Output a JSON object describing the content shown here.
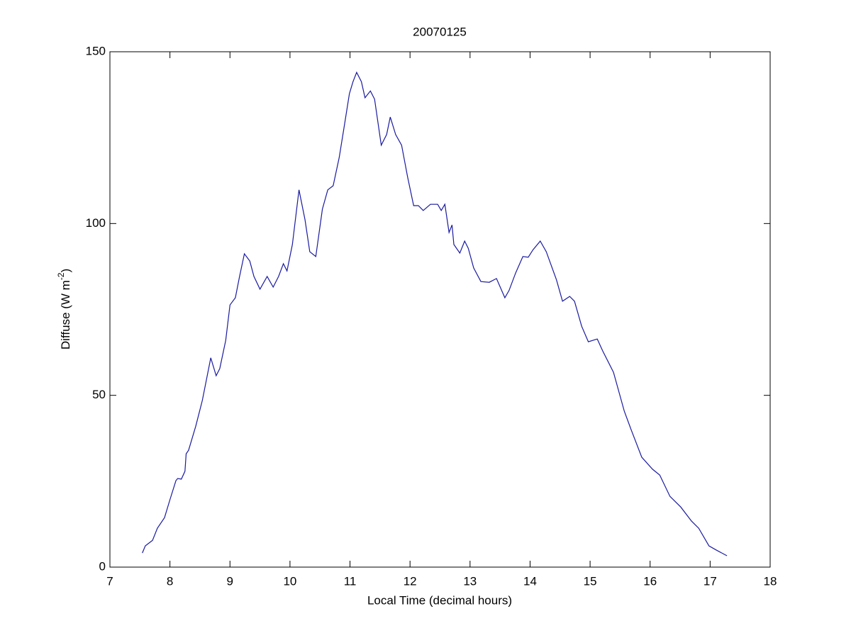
{
  "chart_data": {
    "type": "line",
    "title": "20070125",
    "xlabel": "Local Time (decimal hours)",
    "ylabel": [
      "Diffuse (W m",
      "-2",
      ")"
    ],
    "xlim": [
      7,
      18
    ],
    "xticks": [
      7,
      8,
      9,
      10,
      11,
      12,
      13,
      14,
      15,
      16,
      17,
      18
    ],
    "ylim": [
      0,
      150
    ],
    "yticks": [
      0,
      50,
      100,
      150
    ],
    "grid": false,
    "series": [
      {
        "name": "Diffuse",
        "color": "#1a1aa0",
        "x": [
          7.54,
          7.59,
          7.71,
          7.79,
          7.91,
          8.0,
          8.1,
          8.13,
          8.19,
          8.25,
          8.27,
          8.31,
          8.43,
          8.54,
          8.68,
          8.77,
          8.83,
          8.93,
          9.0,
          9.09,
          9.16,
          9.24,
          9.33,
          9.4,
          9.5,
          9.62,
          9.72,
          9.81,
          9.89,
          9.95,
          10.04,
          10.15,
          10.25,
          10.33,
          10.43,
          10.54,
          10.63,
          10.72,
          10.82,
          10.9,
          10.99,
          11.05,
          11.11,
          11.19,
          11.25,
          11.34,
          11.41,
          11.52,
          11.61,
          11.67,
          11.76,
          11.86,
          11.96,
          12.06,
          12.14,
          12.22,
          12.34,
          12.46,
          12.52,
          12.58,
          12.65,
          12.7,
          12.73,
          12.83,
          12.91,
          12.97,
          13.06,
          13.18,
          13.32,
          13.44,
          13.58,
          13.65,
          13.76,
          13.88,
          13.97,
          14.05,
          14.17,
          14.27,
          14.44,
          14.54,
          14.66,
          14.74,
          14.86,
          14.97,
          15.12,
          15.21,
          15.39,
          15.57,
          15.68,
          15.86,
          16.04,
          16.16,
          16.33,
          16.51,
          16.69,
          16.81,
          16.98,
          17.1,
          17.28
        ],
        "values": [
          4.1,
          6.2,
          7.8,
          11.3,
          14.4,
          19.6,
          25.2,
          25.8,
          25.6,
          27.9,
          33,
          34,
          41,
          48.5,
          60.9,
          55.7,
          57.8,
          66,
          76.3,
          78.4,
          84.6,
          91.2,
          89.1,
          84.6,
          80.9,
          84.6,
          81.5,
          84.6,
          88.3,
          86.2,
          93.9,
          109.8,
          101.1,
          91.8,
          90.4,
          104.2,
          109.8,
          111.0,
          119.2,
          127.9,
          137.8,
          141.3,
          144.0,
          141.3,
          136.6,
          138.6,
          136.2,
          122.8,
          125.9,
          131.0,
          125.9,
          122.8,
          113.5,
          105.2,
          105.2,
          103.8,
          105.6,
          105.6,
          103.8,
          105.6,
          97.4,
          99.6,
          93.9,
          91.4,
          94.9,
          92.8,
          87.1,
          83.1,
          82.9,
          84.0,
          78.4,
          80.5,
          85.6,
          90.4,
          90.2,
          92.4,
          94.9,
          91.8,
          83.6,
          77.4,
          78.8,
          77.4,
          70.1,
          65.6,
          66.4,
          62.9,
          56.7,
          45.4,
          40.2,
          32.0,
          28.5,
          26.8,
          20.6,
          17.5,
          13.4,
          11.3,
          6.2,
          5.0,
          3.3
        ]
      }
    ]
  }
}
